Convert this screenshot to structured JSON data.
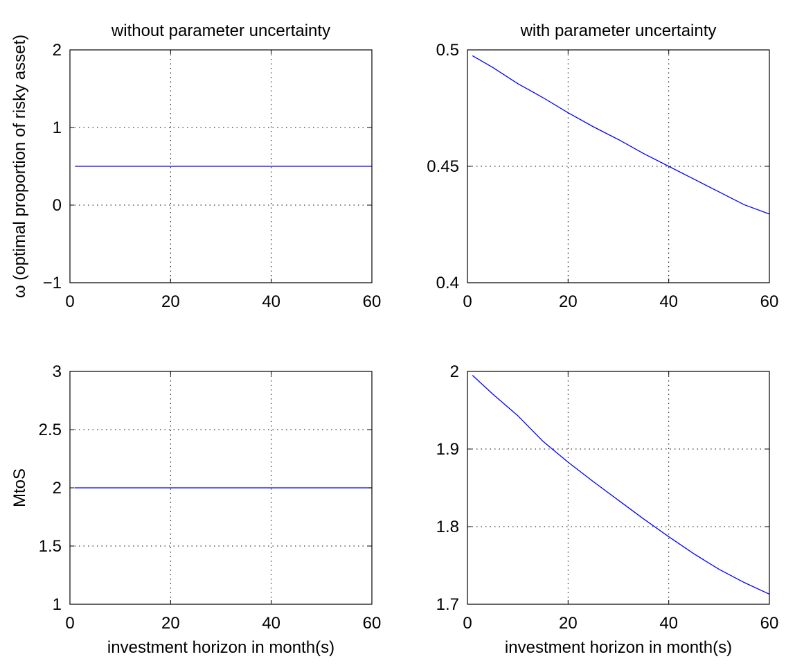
{
  "chart_data": [
    {
      "type": "line",
      "title": "without parameter uncertainty",
      "xlabel": "",
      "ylabel": "ω (optimal proportion of risky asset)",
      "xlim": [
        0,
        60
      ],
      "ylim": [
        -1,
        2
      ],
      "xticks": [
        0,
        20,
        40,
        60
      ],
      "xtick_labels": [
        "0",
        "20",
        "40",
        "60"
      ],
      "yticks": [
        -1,
        0,
        1,
        2
      ],
      "ytick_labels": [
        "−1",
        "0",
        "1",
        "2"
      ],
      "grid": true,
      "series": [
        {
          "color": "#0000ff",
          "x": [
            1,
            60
          ],
          "y": [
            0.5,
            0.5
          ]
        }
      ]
    },
    {
      "type": "line",
      "title": "with parameter uncertainty",
      "xlabel": "",
      "ylabel": "",
      "xlim": [
        0,
        60
      ],
      "ylim": [
        0.4,
        0.5
      ],
      "xticks": [
        0,
        20,
        40,
        60
      ],
      "xtick_labels": [
        "0",
        "20",
        "40",
        "60"
      ],
      "yticks": [
        0.4,
        0.45,
        0.5
      ],
      "ytick_labels": [
        "0.4",
        "0.45",
        "0.5"
      ],
      "grid": true,
      "series": [
        {
          "color": "#0000ff",
          "x": [
            1,
            5,
            10,
            15,
            20,
            25,
            30,
            35,
            40,
            45,
            50,
            55,
            60
          ],
          "y": [
            0.4975,
            0.4925,
            0.4855,
            0.4795,
            0.473,
            0.467,
            0.4615,
            0.4555,
            0.45,
            0.4445,
            0.439,
            0.4335,
            0.4295
          ]
        }
      ]
    },
    {
      "type": "line",
      "title": "",
      "xlabel": "investment horizon in month(s)",
      "ylabel": "MtoS",
      "xlim": [
        0,
        60
      ],
      "ylim": [
        1,
        3
      ],
      "xticks": [
        0,
        20,
        40,
        60
      ],
      "xtick_labels": [
        "0",
        "20",
        "40",
        "60"
      ],
      "yticks": [
        1,
        1.5,
        2,
        2.5,
        3
      ],
      "ytick_labels": [
        "1",
        "1.5",
        "2",
        "2.5",
        "3"
      ],
      "grid": true,
      "series": [
        {
          "color": "#0000ff",
          "x": [
            1,
            60
          ],
          "y": [
            2,
            2
          ]
        }
      ]
    },
    {
      "type": "line",
      "title": "",
      "xlabel": "investment horizon in month(s)",
      "ylabel": "",
      "xlim": [
        0,
        60
      ],
      "ylim": [
        1.7,
        2
      ],
      "xticks": [
        0,
        20,
        40,
        60
      ],
      "xtick_labels": [
        "0",
        "20",
        "40",
        "60"
      ],
      "yticks": [
        1.7,
        1.8,
        1.9,
        2
      ],
      "ytick_labels": [
        "1.7",
        "1.8",
        "1.9",
        "2"
      ],
      "grid": true,
      "series": [
        {
          "color": "#0000ff",
          "x": [
            1,
            5,
            10,
            15,
            20,
            25,
            30,
            35,
            40,
            45,
            50,
            55,
            60
          ],
          "y": [
            1.995,
            1.971,
            1.943,
            1.91,
            1.883,
            1.858,
            1.834,
            1.81,
            1.787,
            1.765,
            1.745,
            1.728,
            1.713
          ]
        }
      ]
    }
  ]
}
